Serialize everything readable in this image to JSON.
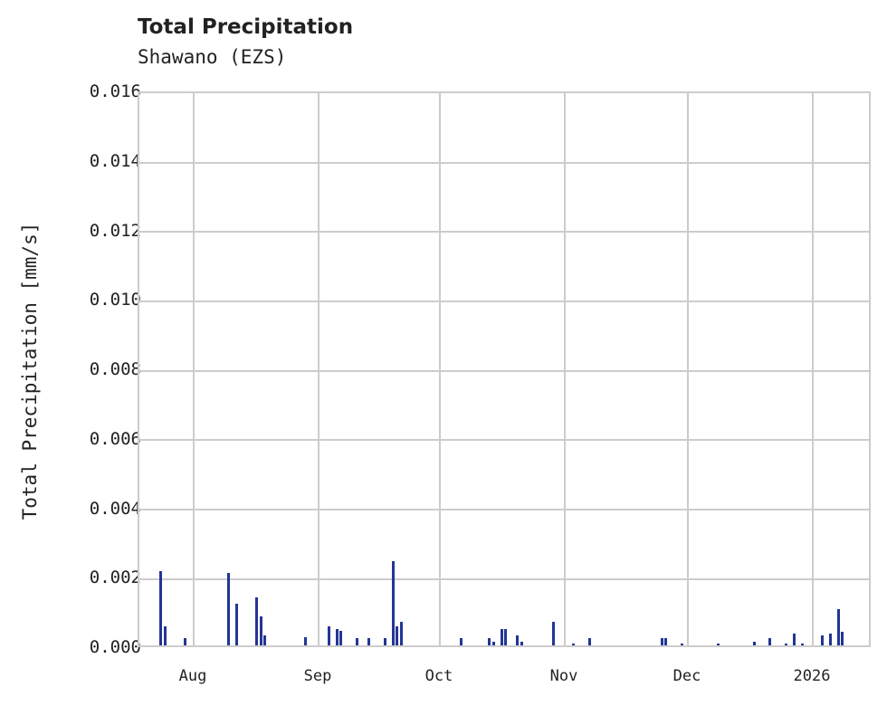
{
  "header": {
    "title": "Total Precipitation",
    "subtitle": "Shawano (EZS)"
  },
  "axes": {
    "ylabel": "Total Precipitation [mm/s]",
    "yticks": [
      "0.000",
      "0.002",
      "0.004",
      "0.006",
      "0.008",
      "0.010",
      "0.012",
      "0.014",
      "0.016"
    ],
    "xticks": [
      "Aug",
      "Sep",
      "Oct",
      "Nov",
      "Dec",
      "2026"
    ]
  },
  "colors": {
    "bar": "#233594",
    "grid": "#cccccc",
    "text": "#222222"
  },
  "chart_data": {
    "type": "bar",
    "title": "Total Precipitation",
    "subtitle": "Shawano (EZS)",
    "xlabel": "",
    "ylabel": "Total Precipitation [mm/s]",
    "ylim": [
      0,
      0.016
    ],
    "grid": true,
    "x_tick_labels": [
      "Aug",
      "Sep",
      "Oct",
      "Nov",
      "Dec",
      "2026"
    ],
    "x_range": [
      "2025-07-18",
      "2026-01-16"
    ],
    "x": [
      "2025-07-23",
      "2025-07-23",
      "2025-07-24",
      "2025-07-29",
      "2025-08-09",
      "2025-08-11",
      "2025-08-16",
      "2025-08-17",
      "2025-08-18",
      "2025-08-28",
      "2025-09-03",
      "2025-09-05",
      "2025-09-06",
      "2025-09-10",
      "2025-09-13",
      "2025-09-17",
      "2025-09-19",
      "2025-09-20",
      "2025-09-21",
      "2025-10-06",
      "2025-10-13",
      "2025-10-14",
      "2025-10-16",
      "2025-10-17",
      "2025-10-20",
      "2025-10-21",
      "2025-10-29",
      "2025-11-03",
      "2025-11-07",
      "2025-11-25",
      "2025-11-26",
      "2025-11-30",
      "2025-12-09",
      "2025-12-18",
      "2025-12-22",
      "2025-12-26",
      "2025-12-28",
      "2025-12-30",
      "2026-01-04",
      "2026-01-06",
      "2026-01-08",
      "2026-01-09"
    ],
    "values": [
      0.0006,
      0.00215,
      0.00055,
      0.0002,
      0.0021,
      0.0012,
      0.0014,
      0.00085,
      0.0003,
      0.00025,
      0.00055,
      0.00048,
      0.00042,
      0.0002,
      0.0002,
      0.0002,
      0.00245,
      0.00055,
      0.00068,
      0.0002,
      0.0002,
      0.0001,
      0.00048,
      0.00048,
      0.00028,
      0.0001,
      0.00068,
      5e-05,
      0.0002,
      0.0002,
      0.0002,
      5e-05,
      5e-05,
      0.0001,
      0.0002,
      5e-05,
      0.00035,
      5e-05,
      0.00028,
      0.00035,
      0.00105,
      0.0004
    ]
  }
}
